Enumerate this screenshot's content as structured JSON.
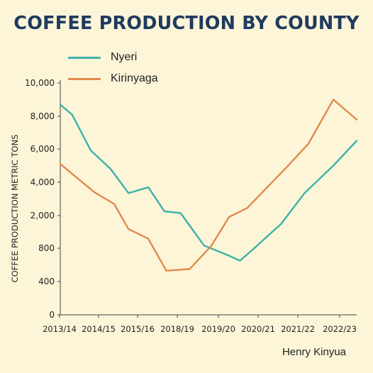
{
  "chart_data": {
    "type": "line",
    "title": "COFFEE PRODUCTION BY COUNTY",
    "xlabel": "",
    "ylabel": "COFFEE PRODUCTION METRIC TONS",
    "y_ticks": [
      "0",
      "400",
      "800",
      "2,000",
      "4,000",
      "6,000",
      "8,000",
      "10,000"
    ],
    "x_ticks": [
      "2013/14",
      "2014/15",
      "2015/16",
      "2018/19",
      "2019/20",
      "2020/21",
      "2021/22",
      "2022/23"
    ],
    "grid": false,
    "legend_position": "top-left",
    "series": [
      {
        "name": "Nyeri",
        "color": "#3bb3a8",
        "points": [
          [
            0,
            8700
          ],
          [
            0.33,
            8100
          ],
          [
            0.85,
            5900
          ],
          [
            1.4,
            4800
          ],
          [
            1.9,
            3350
          ],
          [
            2.45,
            3700
          ],
          [
            2.9,
            2250
          ],
          [
            3.35,
            2150
          ],
          [
            4.0,
            900
          ],
          [
            4.7,
            710
          ],
          [
            5.0,
            650
          ],
          [
            5.4,
            800
          ],
          [
            6.15,
            1700
          ],
          [
            6.8,
            3350
          ],
          [
            7.6,
            5000
          ],
          [
            8.25,
            6500
          ]
        ]
      },
      {
        "name": "Kirinyaga",
        "color": "#e08a4c",
        "points": [
          [
            0,
            5100
          ],
          [
            0.95,
            3400
          ],
          [
            1.5,
            2700
          ],
          [
            1.9,
            1500
          ],
          [
            2.45,
            1150
          ],
          [
            2.95,
            530
          ],
          [
            3.6,
            550
          ],
          [
            4.2,
            880
          ],
          [
            4.7,
            1950
          ],
          [
            5.2,
            2450
          ],
          [
            6.3,
            4900
          ],
          [
            6.9,
            6300
          ],
          [
            7.6,
            9000
          ],
          [
            8.25,
            7800
          ]
        ]
      }
    ]
  },
  "author": "Henry Kinyua"
}
